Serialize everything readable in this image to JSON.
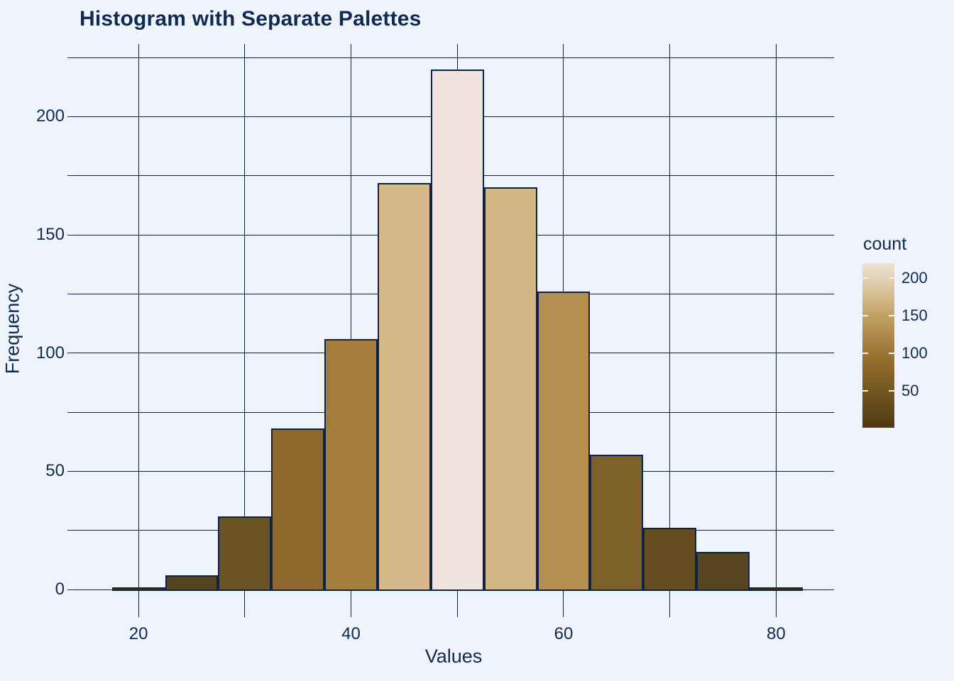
{
  "page": {
    "background": "#eff4fc",
    "text_color": "#112a52",
    "gridline_color": "#0d2240"
  },
  "title": "Histogram with Separate Palettes",
  "chart_data": {
    "type": "bar",
    "subtype": "histogram",
    "title": "Histogram with Separate Palettes",
    "xlabel": "Values",
    "ylabel": "Frequency",
    "bin_width": 5,
    "bin_centers": [
      20,
      25,
      30,
      35,
      40,
      45,
      50,
      55,
      60,
      65,
      70,
      75,
      80
    ],
    "counts": [
      1,
      6,
      31,
      68,
      106,
      172,
      220,
      170,
      126,
      57,
      26,
      16,
      1
    ],
    "bar_colors": [
      "#473309",
      "#564420",
      "#6b5424",
      "#8c682c",
      "#a67e3b",
      "#d6b88a",
      "#f0e3de",
      "#d5b785",
      "#b39050",
      "#7d6128",
      "#644d20",
      "#574520",
      "#473309"
    ],
    "bar_border_color": "#0f2249",
    "x_axis": {
      "ticks": [
        20,
        30,
        40,
        50,
        60,
        70,
        80
      ],
      "labeled_ticks": [
        20,
        40,
        60,
        80
      ],
      "lim": [
        13.85,
        85.45
      ]
    },
    "y_axis": {
      "ticks": [
        0,
        25,
        50,
        75,
        100,
        125,
        150,
        175,
        200,
        225
      ],
      "labeled_ticks": [
        0,
        50,
        100,
        150,
        200
      ],
      "lim": [
        -9.3,
        230.7
      ]
    },
    "grid": true,
    "legend": {
      "title": "count",
      "position": "right",
      "ticks": [
        50,
        100,
        150,
        200
      ],
      "range": [
        1,
        220
      ],
      "gradient_stops": [
        {
          "pos": 0,
          "color": "#4d3a12"
        },
        {
          "pos": 0.224,
          "color": "#755620"
        },
        {
          "pos": 0.453,
          "color": "#9a7533"
        },
        {
          "pos": 0.681,
          "color": "#c2a165"
        },
        {
          "pos": 0.905,
          "color": "#e2d2b4"
        },
        {
          "pos": 1,
          "color": "#ece3d4"
        }
      ]
    }
  }
}
